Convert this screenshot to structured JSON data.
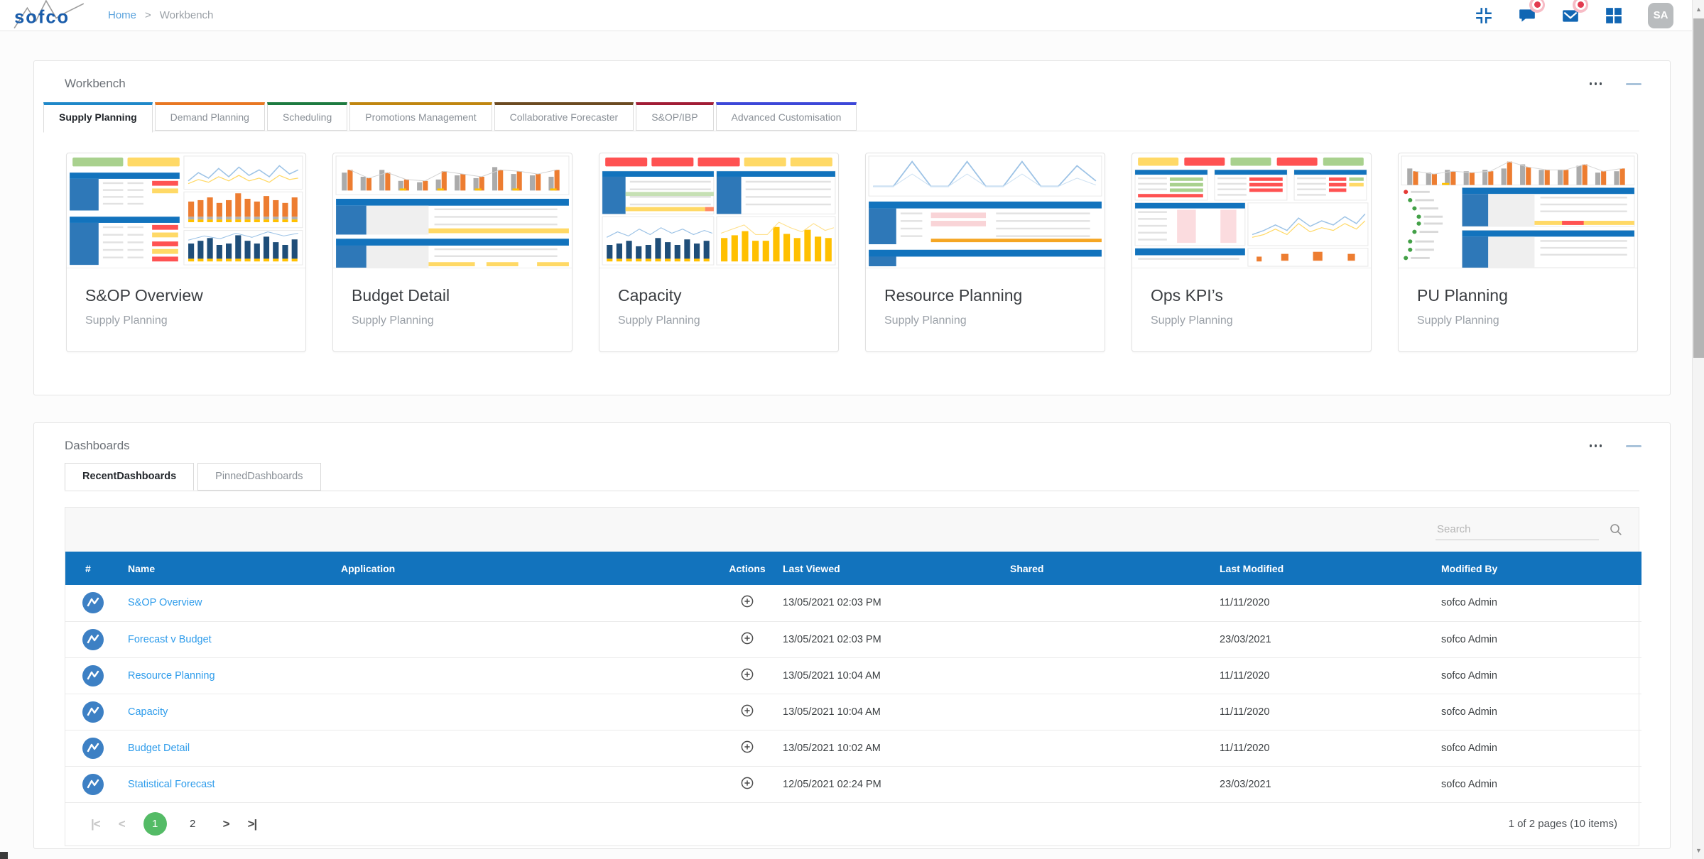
{
  "colors": {
    "brand_blue": "#1273bd",
    "link_blue": "#2e9ceb",
    "pager_green": "#54bb66",
    "badge_red": "#e23b50",
    "icon_blue": "#1166b3"
  },
  "icons": {
    "logo": "sofco-logo",
    "top": [
      "collapse-icon",
      "chat-icon",
      "mail-icon",
      "apps-grid-icon"
    ],
    "panel": [
      "ellipsis-icon",
      "minimize-icon"
    ],
    "search": "search-icon",
    "row": "chart-line-icon",
    "action": "circled-plus-icon"
  },
  "header": {
    "logo_text": "sofco",
    "breadcrumb": {
      "home": "Home",
      "separator": ">",
      "current": "Workbench"
    },
    "avatar": "SA"
  },
  "workbench": {
    "title": "Workbench",
    "tabs": [
      {
        "label": "Supply Planning",
        "color": "#1f88c9",
        "active": true
      },
      {
        "label": "Demand Planning",
        "color": "#e87722",
        "active": false
      },
      {
        "label": "Scheduling",
        "color": "#1d7a40",
        "active": false
      },
      {
        "label": "Promotions Management",
        "color": "#c0860f",
        "active": false
      },
      {
        "label": "Collaborative Forecaster",
        "color": "#6b4a21",
        "active": false
      },
      {
        "label": "S&OP/IBP",
        "color": "#a11c35",
        "active": false
      },
      {
        "label": "Advanced Customisation",
        "color": "#3c47d8",
        "active": false
      }
    ],
    "cards": [
      {
        "title": "S&OP Overview",
        "subtitle": "Supply Planning",
        "thumb": "sandop"
      },
      {
        "title": "Budget Detail",
        "subtitle": "Supply Planning",
        "thumb": "budget"
      },
      {
        "title": "Capacity",
        "subtitle": "Supply Planning",
        "thumb": "capacity"
      },
      {
        "title": "Resource Planning",
        "subtitle": "Supply Planning",
        "thumb": "resource"
      },
      {
        "title": "Ops KPI’s",
        "subtitle": "Supply Planning",
        "thumb": "opskpi"
      },
      {
        "title": "PU Planning",
        "subtitle": "Supply Planning",
        "thumb": "pu"
      }
    ]
  },
  "dashboards": {
    "title": "Dashboards",
    "tabs": [
      {
        "label": "RecentDashboards",
        "active": true
      },
      {
        "label": "PinnedDashboards",
        "active": false
      }
    ],
    "search_placeholder": "Search",
    "table": {
      "columns": [
        "#",
        "Name",
        "Application",
        "Actions",
        "Last Viewed",
        "Shared",
        "Last Modified",
        "Modified By"
      ],
      "rows": [
        {
          "name": "S&OP Overview",
          "application": "",
          "last_viewed": "13/05/2021 02:03 PM",
          "shared": "",
          "last_modified": "11/11/2020",
          "modified_by": "sofco Admin"
        },
        {
          "name": "Forecast v Budget",
          "application": "",
          "last_viewed": "13/05/2021 02:03 PM",
          "shared": "",
          "last_modified": "23/03/2021",
          "modified_by": "sofco Admin"
        },
        {
          "name": "Resource Planning",
          "application": "",
          "last_viewed": "13/05/2021 10:04 AM",
          "shared": "",
          "last_modified": "11/11/2020",
          "modified_by": "sofco Admin"
        },
        {
          "name": "Capacity",
          "application": "",
          "last_viewed": "13/05/2021 10:04 AM",
          "shared": "",
          "last_modified": "11/11/2020",
          "modified_by": "sofco Admin"
        },
        {
          "name": "Budget Detail",
          "application": "",
          "last_viewed": "13/05/2021 10:02 AM",
          "shared": "",
          "last_modified": "11/11/2020",
          "modified_by": "sofco Admin"
        },
        {
          "name": "Statistical Forecast",
          "application": "",
          "last_viewed": "12/05/2021 02:24 PM",
          "shared": "",
          "last_modified": "23/03/2021",
          "modified_by": "sofco Admin"
        }
      ]
    },
    "pagination": {
      "first_glyph": "|<",
      "prev_glyph": "<",
      "next_glyph": ">",
      "last_glyph": ">|",
      "pages": [
        "1",
        "2"
      ],
      "current": "1",
      "summary": "1 of 2 pages (10 items)"
    }
  }
}
